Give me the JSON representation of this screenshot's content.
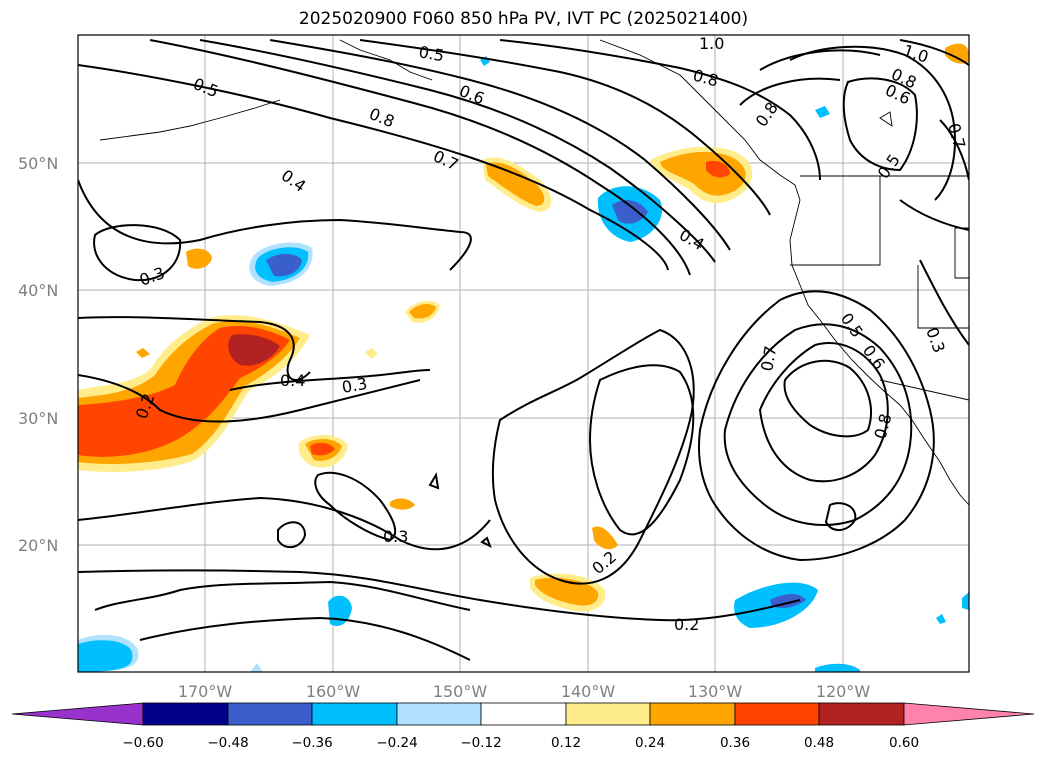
{
  "title": "2025020900 F060 850 hPa PV, IVT PC (2025021400)",
  "latitude_labels": [
    "50°N",
    "40°N",
    "30°N",
    "20°N"
  ],
  "longitude_labels": [
    "170°W",
    "160°W",
    "150°W",
    "140°W",
    "130°W",
    "120°W"
  ],
  "contour_labels": [
    "0.5",
    "0.5",
    "0.6",
    "0.8",
    "0.7",
    "0.4",
    "0.3",
    "0.4",
    "0.3",
    "0.2",
    "0.3",
    "0.2",
    "0.2",
    "0.4",
    "0.8",
    "1.0",
    "0.8",
    "0.8",
    "0.6",
    "1.0",
    "0.8",
    "0.6",
    "0.7",
    "0.5",
    "0.5",
    "0.6",
    "0.7",
    "0.8",
    "0.3"
  ],
  "colorbar": {
    "ticks": [
      "−0.60",
      "−0.48",
      "−0.36",
      "−0.24",
      "−0.12",
      "0.12",
      "0.24",
      "0.36",
      "0.48",
      "0.60"
    ],
    "colors": [
      "#9932CC",
      "#00008B",
      "#3A5FCD",
      "#00BFFF",
      "#B0E2FF",
      "#FFFFFF",
      "#FFEC8B",
      "#FFA500",
      "#FF4500",
      "#B22222",
      "#FF82AB"
    ]
  }
}
